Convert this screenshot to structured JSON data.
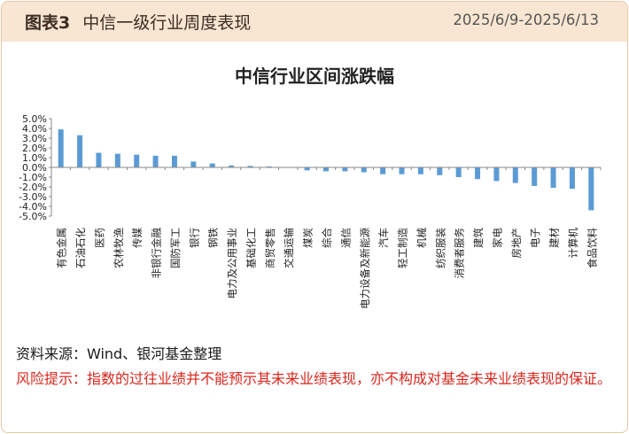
{
  "header": {
    "tag": "图表3",
    "title": "中信一级行业周度表现",
    "date_range": "2025/6/9-2025/6/13"
  },
  "colors": {
    "bar": "#5b9bd5",
    "header_bg": "#f8e6d3",
    "border": "#e6c7a4",
    "risk_text": "#d9261c"
  },
  "chart_data": {
    "type": "bar",
    "title": "中信行业区间涨跌幅",
    "xlabel": "",
    "ylabel": "",
    "ylim": [
      -5.0,
      5.0
    ],
    "yticks": [
      "5.0%",
      "4.0%",
      "3.0%",
      "2.0%",
      "1.0%",
      "0.0%",
      "-1.0%",
      "-2.0%",
      "-3.0%",
      "-4.0%",
      "-5.0%"
    ],
    "grid": false,
    "legend": "none",
    "categories": [
      "有色金属",
      "石油石化",
      "医药",
      "农林牧渔",
      "传媒",
      "非银行金融",
      "国防军工",
      "银行",
      "钢铁",
      "电力及公用事业",
      "基础化工",
      "商贸零售",
      "交通运输",
      "煤炭",
      "综合",
      "通信",
      "电力设备及新能源",
      "汽车",
      "轻工制造",
      "机械",
      "纺织服装",
      "消费者服务",
      "建筑",
      "家电",
      "房地产",
      "电子",
      "建材",
      "计算机",
      "食品饮料"
    ],
    "values": [
      3.9,
      3.3,
      1.5,
      1.4,
      1.3,
      1.2,
      1.2,
      0.6,
      0.4,
      0.2,
      0.15,
      0.1,
      0.02,
      -0.3,
      -0.4,
      -0.4,
      -0.5,
      -0.7,
      -0.7,
      -0.7,
      -0.8,
      -1.0,
      -1.2,
      -1.4,
      -1.6,
      -1.9,
      -2.1,
      -2.2,
      -4.4
    ]
  },
  "footer": {
    "source": "资料来源：Wind、银河基金整理",
    "risk": "风险提示：指数的过往业绩并不能预示其未来业绩表现，亦不构成对基金未来业绩表现的保证。"
  }
}
